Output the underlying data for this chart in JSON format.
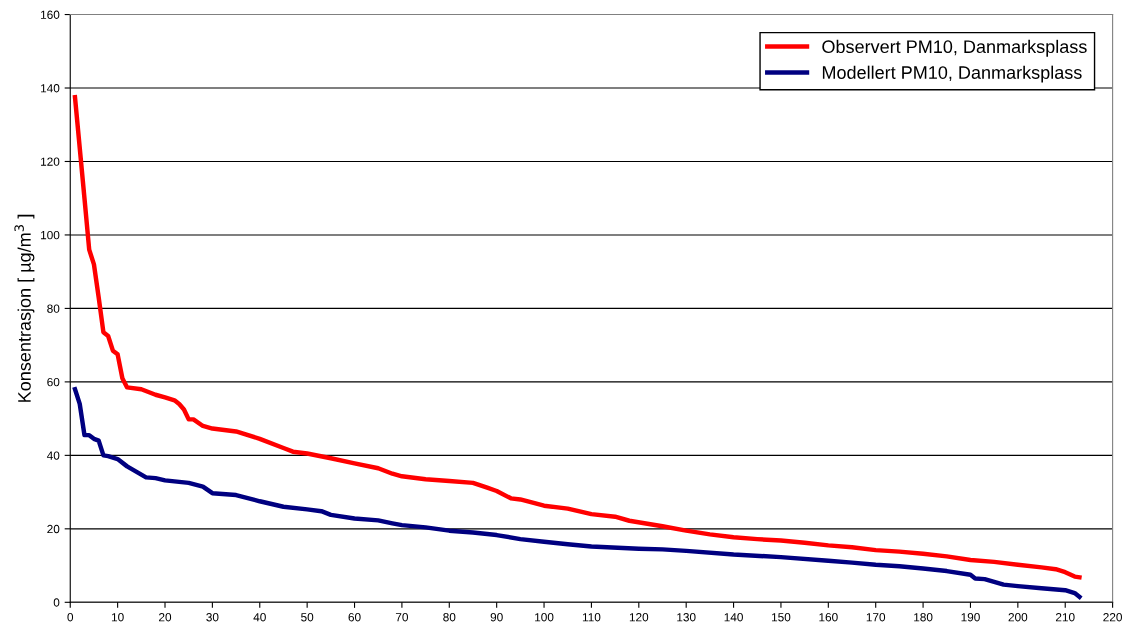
{
  "chart_data": {
    "type": "line",
    "ylabel": "Konsentrasjon [ µg/m$^{3}$ ]",
    "xlim": [
      0,
      220
    ],
    "xticks": [
      0,
      10,
      20,
      30,
      40,
      50,
      60,
      70,
      80,
      90,
      100,
      110,
      120,
      130,
      140,
      150,
      160,
      170,
      180,
      190,
      200,
      210,
      220
    ],
    "ylim": [
      0,
      160
    ],
    "yticks": [
      0,
      20,
      40,
      60,
      80,
      100,
      120,
      140,
      160
    ],
    "grid": "y",
    "legend": "top right",
    "line_style": "solid",
    "marker": "none",
    "series": [
      {
        "name": "Observert PM10, Danmarksplass",
        "color": "#ff0000",
        "x": [
          1,
          3,
          4,
          5,
          6,
          7,
          8,
          9,
          10,
          11,
          12,
          15,
          18,
          20,
          22,
          23,
          24,
          25,
          26,
          28,
          30,
          35,
          40,
          45,
          47,
          50,
          55,
          60,
          65,
          68,
          70,
          75,
          80,
          85,
          88,
          90,
          93,
          95,
          100,
          105,
          110,
          115,
          118,
          125,
          130,
          135,
          140,
          145,
          150,
          155,
          160,
          165,
          170,
          175,
          180,
          185,
          190,
          195,
          200,
          205,
          208,
          210,
          212,
          213
        ],
        "values": [
          137.5,
          110,
          96,
          92,
          83,
          73.5,
          72.5,
          68.5,
          67.5,
          61,
          58.5,
          58,
          56.5,
          55.8,
          55,
          54,
          52.5,
          49.8,
          49.8,
          48,
          47.3,
          46.5,
          44.5,
          42,
          41,
          40.5,
          39.2,
          37.8,
          36.5,
          35,
          34.3,
          33.5,
          33,
          32.5,
          31.2,
          30.3,
          28.3,
          28,
          26.3,
          25.5,
          24,
          23.3,
          22.2,
          20.7,
          19.5,
          18.5,
          17.7,
          17.2,
          16.8,
          16.2,
          15.5,
          15,
          14.2,
          13.8,
          13.2,
          12.5,
          11.5,
          11,
          10.2,
          9.5,
          9,
          8.2,
          7,
          6.8
        ]
      },
      {
        "name": "Modellert PM10, Danmarksplass",
        "color": "#000080",
        "x": [
          1,
          2,
          3,
          4,
          5,
          6,
          7,
          8,
          10,
          12,
          14,
          16,
          18,
          20,
          25,
          28,
          30,
          35,
          40,
          45,
          50,
          53,
          55,
          60,
          65,
          68,
          70,
          75,
          80,
          85,
          90,
          95,
          100,
          105,
          110,
          120,
          125,
          130,
          140,
          150,
          160,
          165,
          170,
          175,
          180,
          185,
          190,
          191,
          193,
          197,
          200,
          205,
          210,
          212,
          213
        ],
        "values": [
          58,
          54,
          45.5,
          45.5,
          44.5,
          44,
          40,
          39.8,
          39,
          37,
          35.5,
          34,
          33.8,
          33.2,
          32.5,
          31.5,
          29.7,
          29.2,
          27.5,
          26,
          25.3,
          24.8,
          23.8,
          22.8,
          22.3,
          21.5,
          21,
          20.4,
          19.5,
          19,
          18.3,
          17.2,
          16.5,
          15.8,
          15.2,
          14.6,
          14.4,
          14,
          13,
          12.3,
          11.3,
          10.8,
          10.2,
          9.8,
          9.2,
          8.5,
          7.5,
          6.5,
          6.3,
          4.8,
          4.4,
          3.8,
          3.3,
          2.5,
          1.5
        ]
      }
    ]
  }
}
